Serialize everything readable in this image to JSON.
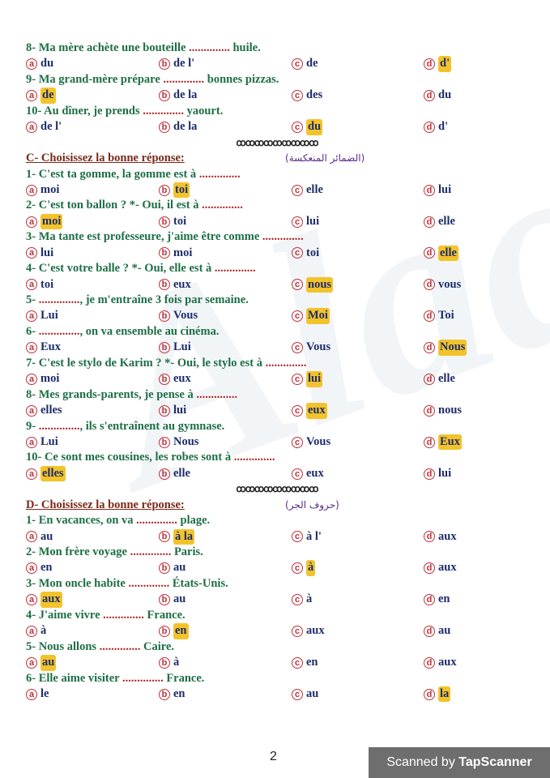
{
  "watermark": "Alaa",
  "ornament": "ꝏꝏꝏꝏꝏꝏꝏꝏꝏ",
  "blank": "..............",
  "sections": [
    {
      "header": "",
      "arabic": "",
      "questions": [
        {
          "pre": "8- Ma mère achète une bouteille",
          "post": "huile.",
          "options": [
            "du",
            "de l'",
            "de",
            "d'"
          ],
          "answer": 3
        },
        {
          "pre": "9- Ma grand-mère prépare",
          "post": "bonnes pizzas.",
          "options": [
            "de",
            "de la",
            "des",
            "du"
          ],
          "answer": 0
        },
        {
          "pre": "10- Au dîner, je prends",
          "post": "yaourt.",
          "options": [
            "de l'",
            "de la",
            "du",
            "d'"
          ],
          "answer": 2
        }
      ]
    },
    {
      "header": "C- Choisissez la bonne réponse:",
      "arabic": "(الضمائر المنعكسة)",
      "questions": [
        {
          "pre": "1- C'est ta gomme, la gomme est à",
          "post": "",
          "options": [
            "moi",
            "toi",
            "elle",
            "lui"
          ],
          "answer": 1
        },
        {
          "pre": "2- C'est ton ballon ? *- Oui, il est à",
          "post": "",
          "options": [
            "moi",
            "toi",
            "lui",
            "elle"
          ],
          "answer": 0
        },
        {
          "pre": "3- Ma tante est professeure, j'aime être comme",
          "post": "",
          "options": [
            "lui",
            "moi",
            "toi",
            "elle"
          ],
          "answer": 3
        },
        {
          "pre": "4- C'est votre balle ? *- Oui, elle est à",
          "post": "",
          "options": [
            "toi",
            "eux",
            "nous",
            "vous"
          ],
          "answer": 2
        },
        {
          "pre": "5-",
          "post": ", je m'entraîne 3 fois par semaine.",
          "options": [
            "Lui",
            "Vous",
            "Moi",
            "Toi"
          ],
          "answer": 2
        },
        {
          "pre": "6-",
          "post": ", on va ensemble au cinéma.",
          "options": [
            "Eux",
            "Lui",
            "Vous",
            "Nous"
          ],
          "answer": 3
        },
        {
          "pre": "7- C'est le stylo de Karim ? *- Oui, le stylo est à",
          "post": "",
          "options": [
            "moi",
            "eux",
            "lui",
            "elle"
          ],
          "answer": 2
        },
        {
          "pre": "8- Mes grands-parents, je pense à",
          "post": "",
          "options": [
            "elles",
            "lui",
            "eux",
            "nous"
          ],
          "answer": 2
        },
        {
          "pre": "9-",
          "post": ", ils s'entraînent au gymnase.",
          "options": [
            "Lui",
            "Nous",
            "Vous",
            "Eux"
          ],
          "answer": 3
        },
        {
          "pre": "10- Ce sont mes cousines, les robes sont à",
          "post": "",
          "options": [
            "elles",
            "elle",
            "eux",
            "lui"
          ],
          "answer": 0
        }
      ]
    },
    {
      "header": "D- Choisissez la bonne réponse:",
      "arabic": "(حروف الجر)",
      "questions": [
        {
          "pre": "1- En vacances, on va",
          "post": "plage.",
          "options": [
            "au",
            "à la",
            "à l'",
            "aux"
          ],
          "answer": 1
        },
        {
          "pre": "2- Mon frère voyage",
          "post": "Paris.",
          "options": [
            "en",
            "au",
            "à",
            "aux"
          ],
          "answer": 2
        },
        {
          "pre": "3- Mon oncle habite",
          "post": "États-Unis.",
          "options": [
            "aux",
            "au",
            "à",
            "en"
          ],
          "answer": 0
        },
        {
          "pre": "4- J'aime vivre",
          "post": "France.",
          "options": [
            "à",
            "en",
            "aux",
            "au"
          ],
          "answer": 1
        },
        {
          "pre": "5- Nous allons",
          "post": "Caire.",
          "options": [
            "au",
            "à",
            "en",
            "aux"
          ],
          "answer": 0
        },
        {
          "pre": "6- Elle aime visiter",
          "post": "France.",
          "options": [
            "le",
            "en",
            "au",
            "la"
          ],
          "answer": 3
        }
      ]
    }
  ],
  "letters": [
    "a",
    "b",
    "c",
    "d"
  ],
  "colors": {
    "question": "#1e6e45",
    "option": "#1d2d6b",
    "blank": "#b02020",
    "highlight": "#f3c32c",
    "header": "#7a2a1a",
    "arabic": "#5a2a8a"
  },
  "page_number": "2",
  "scanner": {
    "prefix": "Scanned by ",
    "brand": "TapScanner"
  }
}
